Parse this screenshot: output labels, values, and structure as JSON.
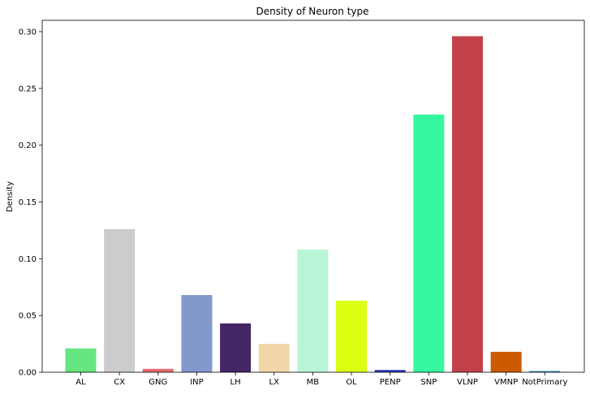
{
  "chart_data": {
    "type": "bar",
    "title": "Density of Neuron type",
    "xlabel": "",
    "ylabel": "Density",
    "categories": [
      "AL",
      "CX",
      "GNG",
      "INP",
      "LH",
      "LX",
      "MB",
      "OL",
      "PENP",
      "SNP",
      "VLNP",
      "VMNP",
      "NotPrimary"
    ],
    "values": [
      0.021,
      0.126,
      0.003,
      0.068,
      0.043,
      0.025,
      0.108,
      0.063,
      0.002,
      0.227,
      0.296,
      0.018,
      0.001
    ],
    "colors": [
      "#66e580",
      "#cccccc",
      "#e66b6f",
      "#8299ce",
      "#452665",
      "#f3d7a9",
      "#b8f5d7",
      "#dcff12",
      "#2e35ba",
      "#35f79f",
      "#c3404a",
      "#cb5a00",
      "#1381a8"
    ],
    "ylim": [
      0,
      0.31
    ],
    "yticks": [
      0.0,
      0.05,
      0.1,
      0.15,
      0.2,
      0.25,
      0.3
    ],
    "ytick_labels": [
      "0.00",
      "0.05",
      "0.10",
      "0.15",
      "0.20",
      "0.25",
      "0.30"
    ],
    "grid": false,
    "legend": "none"
  }
}
